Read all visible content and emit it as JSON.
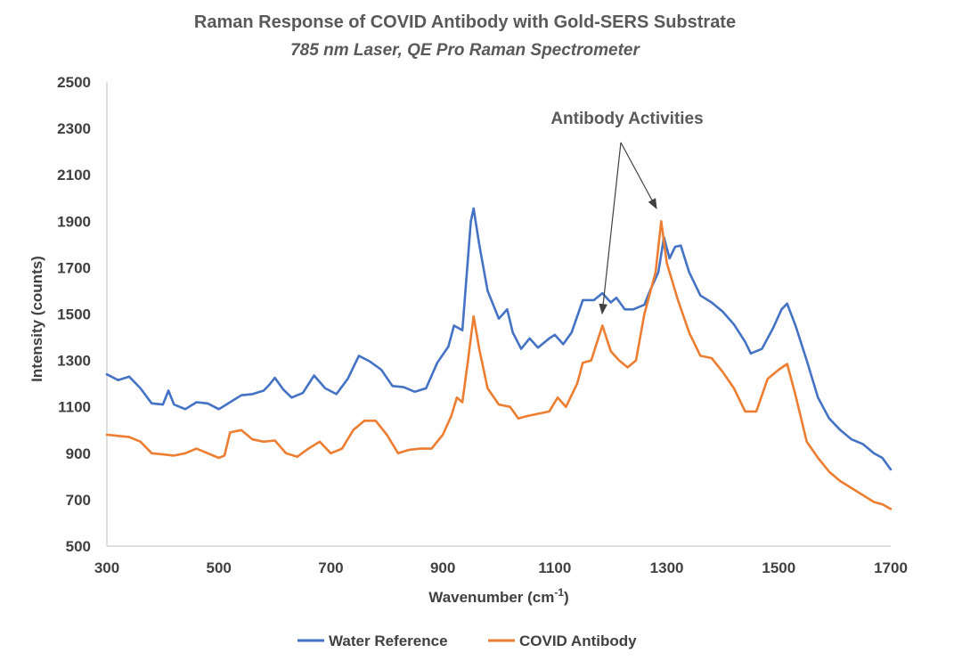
{
  "chart_data": {
    "type": "line",
    "title": "Raman Response of COVID Antibody with Gold-SERS Substrate",
    "subtitle": "785 nm Laser, QE Pro Raman Spectrometer",
    "xlabel": "Wavenumber (cm",
    "xlabel_sup": "-1",
    "xlabel_tail": ")",
    "ylabel": "Intensity (counts)",
    "xlim": [
      300,
      1700
    ],
    "ylim": [
      500,
      2500
    ],
    "xticks": [
      300,
      500,
      700,
      900,
      1100,
      1300,
      1500,
      1700
    ],
    "yticks": [
      500,
      700,
      900,
      1100,
      1300,
      1500,
      1700,
      1900,
      2100,
      2300,
      2500
    ],
    "legend_position": "bottom",
    "annotation": {
      "text": "Antibody Activities",
      "targets": [
        [
          1185,
          1450
        ],
        [
          1290,
          1900
        ]
      ]
    },
    "series": [
      {
        "name": "Water Reference",
        "color": "#4472C4",
        "points": [
          [
            300,
            1240
          ],
          [
            320,
            1215
          ],
          [
            340,
            1230
          ],
          [
            360,
            1180
          ],
          [
            380,
            1115
          ],
          [
            400,
            1110
          ],
          [
            410,
            1170
          ],
          [
            420,
            1110
          ],
          [
            440,
            1090
          ],
          [
            460,
            1120
          ],
          [
            480,
            1115
          ],
          [
            500,
            1090
          ],
          [
            520,
            1120
          ],
          [
            540,
            1150
          ],
          [
            560,
            1155
          ],
          [
            580,
            1170
          ],
          [
            590,
            1195
          ],
          [
            600,
            1225
          ],
          [
            615,
            1175
          ],
          [
            630,
            1140
          ],
          [
            650,
            1160
          ],
          [
            670,
            1235
          ],
          [
            690,
            1180
          ],
          [
            710,
            1155
          ],
          [
            730,
            1220
          ],
          [
            750,
            1320
          ],
          [
            770,
            1295
          ],
          [
            790,
            1260
          ],
          [
            810,
            1190
          ],
          [
            830,
            1185
          ],
          [
            850,
            1165
          ],
          [
            870,
            1180
          ],
          [
            890,
            1290
          ],
          [
            910,
            1360
          ],
          [
            920,
            1450
          ],
          [
            935,
            1430
          ],
          [
            950,
            1900
          ],
          [
            955,
            1955
          ],
          [
            965,
            1800
          ],
          [
            980,
            1600
          ],
          [
            1000,
            1480
          ],
          [
            1015,
            1520
          ],
          [
            1025,
            1420
          ],
          [
            1040,
            1350
          ],
          [
            1055,
            1395
          ],
          [
            1070,
            1355
          ],
          [
            1090,
            1395
          ],
          [
            1100,
            1410
          ],
          [
            1115,
            1370
          ],
          [
            1130,
            1420
          ],
          [
            1150,
            1560
          ],
          [
            1170,
            1560
          ],
          [
            1185,
            1590
          ],
          [
            1200,
            1550
          ],
          [
            1210,
            1570
          ],
          [
            1225,
            1520
          ],
          [
            1240,
            1520
          ],
          [
            1260,
            1540
          ],
          [
            1270,
            1600
          ],
          [
            1285,
            1680
          ],
          [
            1295,
            1830
          ],
          [
            1305,
            1740
          ],
          [
            1315,
            1790
          ],
          [
            1325,
            1795
          ],
          [
            1340,
            1680
          ],
          [
            1360,
            1580
          ],
          [
            1380,
            1550
          ],
          [
            1400,
            1510
          ],
          [
            1420,
            1455
          ],
          [
            1440,
            1380
          ],
          [
            1450,
            1330
          ],
          [
            1470,
            1350
          ],
          [
            1490,
            1440
          ],
          [
            1505,
            1520
          ],
          [
            1515,
            1545
          ],
          [
            1530,
            1450
          ],
          [
            1550,
            1300
          ],
          [
            1570,
            1140
          ],
          [
            1590,
            1050
          ],
          [
            1610,
            1000
          ],
          [
            1630,
            960
          ],
          [
            1650,
            940
          ],
          [
            1670,
            900
          ],
          [
            1685,
            880
          ],
          [
            1700,
            830
          ]
        ]
      },
      {
        "name": "COVID Antibody",
        "color": "#ED7D31",
        "points": [
          [
            300,
            980
          ],
          [
            320,
            975
          ],
          [
            340,
            970
          ],
          [
            360,
            950
          ],
          [
            380,
            900
          ],
          [
            400,
            895
          ],
          [
            420,
            890
          ],
          [
            440,
            900
          ],
          [
            460,
            920
          ],
          [
            480,
            900
          ],
          [
            500,
            880
          ],
          [
            510,
            890
          ],
          [
            520,
            990
          ],
          [
            540,
            1000
          ],
          [
            560,
            960
          ],
          [
            580,
            950
          ],
          [
            600,
            955
          ],
          [
            620,
            900
          ],
          [
            640,
            885
          ],
          [
            660,
            920
          ],
          [
            680,
            950
          ],
          [
            700,
            900
          ],
          [
            720,
            920
          ],
          [
            740,
            1000
          ],
          [
            760,
            1040
          ],
          [
            780,
            1040
          ],
          [
            800,
            980
          ],
          [
            820,
            900
          ],
          [
            840,
            915
          ],
          [
            860,
            920
          ],
          [
            880,
            920
          ],
          [
            900,
            980
          ],
          [
            915,
            1060
          ],
          [
            925,
            1140
          ],
          [
            935,
            1120
          ],
          [
            945,
            1300
          ],
          [
            955,
            1490
          ],
          [
            965,
            1350
          ],
          [
            980,
            1180
          ],
          [
            1000,
            1110
          ],
          [
            1020,
            1100
          ],
          [
            1035,
            1050
          ],
          [
            1050,
            1060
          ],
          [
            1070,
            1070
          ],
          [
            1090,
            1080
          ],
          [
            1105,
            1140
          ],
          [
            1120,
            1100
          ],
          [
            1140,
            1200
          ],
          [
            1150,
            1290
          ],
          [
            1165,
            1300
          ],
          [
            1185,
            1450
          ],
          [
            1200,
            1340
          ],
          [
            1215,
            1300
          ],
          [
            1230,
            1270
          ],
          [
            1245,
            1300
          ],
          [
            1260,
            1500
          ],
          [
            1280,
            1680
          ],
          [
            1290,
            1900
          ],
          [
            1300,
            1720
          ],
          [
            1320,
            1560
          ],
          [
            1340,
            1420
          ],
          [
            1360,
            1320
          ],
          [
            1380,
            1310
          ],
          [
            1400,
            1250
          ],
          [
            1420,
            1180
          ],
          [
            1440,
            1080
          ],
          [
            1460,
            1080
          ],
          [
            1480,
            1220
          ],
          [
            1500,
            1260
          ],
          [
            1515,
            1285
          ],
          [
            1530,
            1150
          ],
          [
            1550,
            950
          ],
          [
            1570,
            880
          ],
          [
            1590,
            820
          ],
          [
            1610,
            780
          ],
          [
            1630,
            750
          ],
          [
            1650,
            720
          ],
          [
            1670,
            690
          ],
          [
            1685,
            680
          ],
          [
            1700,
            660
          ]
        ]
      }
    ]
  }
}
